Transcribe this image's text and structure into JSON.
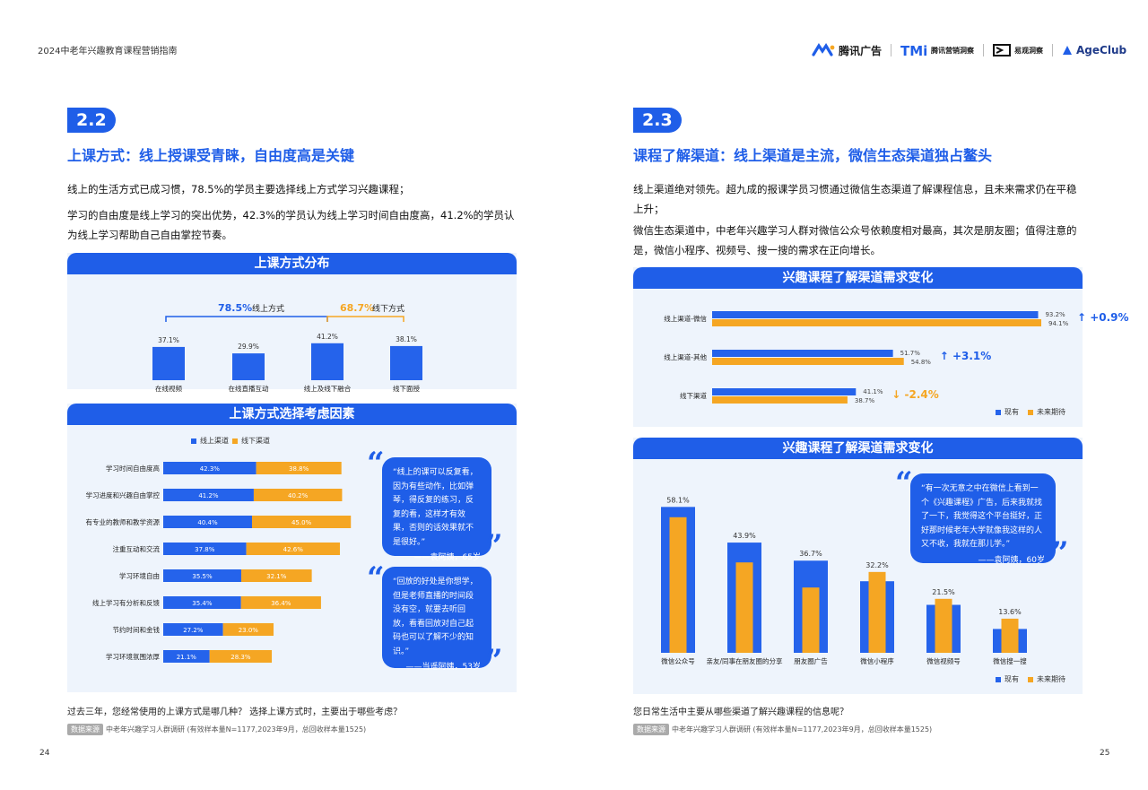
{
  "header": {
    "doc_title": "2024中老年兴趣教育课程营销指南",
    "logos": [
      "腾讯广告",
      "腾讯营销洞察",
      "易观洞察",
      "AgeClub"
    ]
  },
  "colors": {
    "blue": "#2563eb",
    "orange": "#f5a623",
    "accent": "#1f5ee8",
    "panel_bg": "#eef4fc"
  },
  "left": {
    "badge": "2.2",
    "title": "上课方式：线上授课受青睐，自由度高是关键",
    "para1": "线上的生活方式已成习惯，78.5%的学员主要选择线上方式学习兴趣课程；",
    "para2": "学习的自由度是线上学习的突出优势，42.3%的学员认为线上学习时间自由度高，41.2%的学员认为线上学习帮助自己自由掌控节奏。",
    "panel1_title": "上课方式分布",
    "panel2_title": "上课方式选择考虑因素",
    "online_pct": "78.5%",
    "online_label": "线上方式",
    "offline_pct": "68.7%",
    "offline_label": "线下方式",
    "quote1": {
      "text": "“线上的课可以反复看，因为有些动作，比如弹琴，得反复的练习，反复的看，这样才有效果，否则的话效果就不是很好。”",
      "by": "——袁阿姨，65岁"
    },
    "quote2": {
      "text": "“回放的好处是你想学，但是老师直播的时间段没有空，就要去听回放，看看回放对自己起码也可以了解不少的知识。”",
      "by": "——当遥阿姨，53岁"
    },
    "question": "过去三年，您经常使用的上课方式是哪几种？ 选择上课方式时，主要出于哪些考虑？",
    "source_tag": "数据来源",
    "source": "中老年兴趣学习人群调研 (有效样本量N=1177,2023年9月，总回收样本量1525)",
    "page": "24"
  },
  "right": {
    "badge": "2.3",
    "title": "课程了解渠道：线上渠道是主流，微信生态渠道独占鳌头",
    "para1": "线上渠道绝对领先。超九成的报课学员习惯通过微信生态渠道了解课程信息，且未来需求仍在平稳上升；",
    "para2": "微信生态渠道中，中老年兴趣学习人群对微信公众号依赖度相对最高，其次是朋友圈；值得注意的是，微信小程序、视频号、搜一搜的需求在正向增长。",
    "panel1_title": "兴趣课程了解渠道需求变化",
    "panel2_title": "兴趣课程了解渠道需求变化",
    "quote": {
      "text": "“有一次无意之中在微信上看到一个《兴趣课程》广告，后来我就找了一下，我觉得这个平台挺好，正好那时候老年大学就像我这样的人又不收，我就在那儿学。”",
      "by": "——袁阿姨，60岁"
    },
    "question": "您日常生活中主要从哪些渠道了解兴趣课程的信息呢？",
    "source_tag": "数据来源",
    "source": "中老年兴趣学习人群调研 (有效样本量N=1177,2023年9月，总回收样本量1525)",
    "page": "25"
  },
  "chart_data": [
    {
      "type": "bar",
      "title": "上课方式分布",
      "categories": [
        "在线视频",
        "在线直播互动",
        "线上及线下融合",
        "线下面授"
      ],
      "values": [
        37.1,
        29.9,
        41.2,
        38.1
      ],
      "labels": [
        "37.1%",
        "29.9%",
        "41.2%",
        "38.1%"
      ],
      "ylim": [
        0,
        50
      ]
    },
    {
      "type": "bar",
      "title": "上课方式选择考虑因素",
      "orientation": "horizontal-stacked",
      "categories": [
        "学习时间自由度高",
        "学习进度和兴趣自由掌控",
        "有专业的教师和教学资源",
        "注重互动和交流",
        "学习环境自由",
        "线上学习有分析和反馈",
        "节约时间和金钱",
        "学习环境氛围浓厚"
      ],
      "series": [
        {
          "name": "线上渠道",
          "values": [
            42.3,
            41.2,
            40.4,
            37.8,
            35.5,
            35.4,
            27.2,
            21.1
          ],
          "labels": [
            "42.3%",
            "41.2%",
            "40.4%",
            "37.8%",
            "35.5%",
            "35.4%",
            "27.2%",
            "21.1%"
          ]
        },
        {
          "name": "线下渠道",
          "values": [
            38.8,
            40.2,
            45.0,
            42.6,
            32.1,
            36.4,
            23.0,
            28.3
          ],
          "labels": [
            "38.8%",
            "40.2%",
            "45.0%",
            "42.6%",
            "32.1%",
            "36.4%",
            "23.0%",
            "28.3%"
          ]
        }
      ],
      "legend": "top-left"
    },
    {
      "type": "bar",
      "title": "兴趣课程了解渠道需求变化",
      "orientation": "horizontal",
      "categories": [
        "线上渠道-微信",
        "线上渠道-其他",
        "线下渠道"
      ],
      "series": [
        {
          "name": "现有",
          "values": [
            93.2,
            51.7,
            41.1
          ],
          "labels": [
            "93.2%",
            "51.7%",
            "41.1%"
          ]
        },
        {
          "name": "未来期待",
          "values": [
            94.1,
            54.8,
            38.7
          ],
          "labels": [
            "94.1%",
            "54.8%",
            "38.7%"
          ]
        }
      ],
      "changes": [
        {
          "text": "↑ +0.9%",
          "color": "#1f5ee8"
        },
        {
          "text": "↑ +3.1%",
          "color": "#1f5ee8"
        },
        {
          "text": "↓ -2.4%",
          "color": "#f5a623"
        }
      ],
      "legend": "bottom-right"
    },
    {
      "type": "bar",
      "title": "兴趣课程了解渠道需求变化",
      "categories": [
        "微信公众号",
        "亲友/同事在朋友圈的分享",
        "朋友圈广告",
        "微信小程序",
        "微信视频号",
        "微信搜一搜"
      ],
      "series": [
        {
          "name": "现有",
          "values": [
            58.1,
            43.9,
            36.7,
            28.5,
            19.1,
            9.5
          ]
        },
        {
          "name": "未来期待",
          "values": [
            54.0,
            36.0,
            26.0,
            32.2,
            21.5,
            13.6
          ]
        }
      ],
      "top_labels": [
        "58.1%",
        "43.9%",
        "36.7%",
        "32.2%",
        "21.5%",
        "13.6%"
      ],
      "legend": "bottom-right"
    }
  ]
}
